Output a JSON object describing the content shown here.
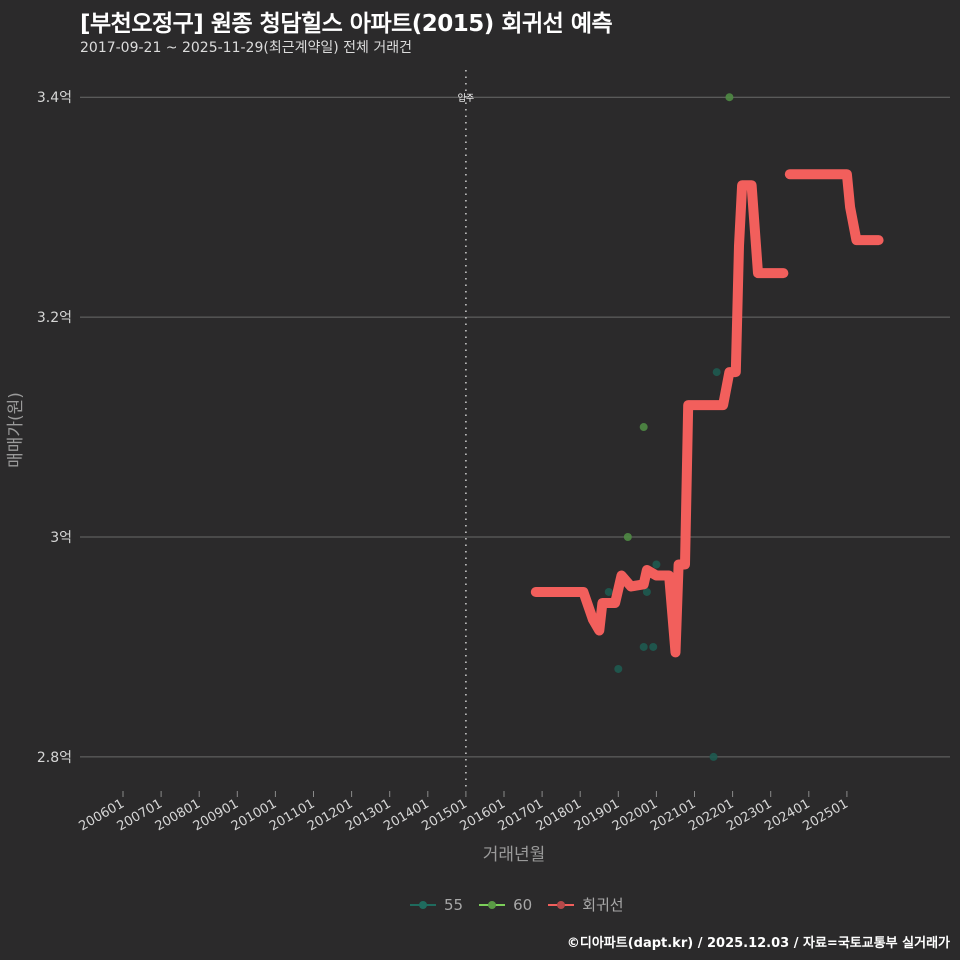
{
  "header": {
    "title": "[부천오정구] 원종 청담힐스 아파트(2015) 회귀선 예측",
    "subtitle": "2017-09-21 ~ 2025-11-29(최근계약일) 전체 거래건"
  },
  "legend": {
    "items": [
      {
        "label": "55",
        "color": "#1f6b5e"
      },
      {
        "label": "60",
        "color": "#7ccf5a"
      },
      {
        "label": "회귀선",
        "color": "#f25f5c"
      }
    ]
  },
  "caption": "©디아파트(dapt.kr) / 2025.12.03 / 자료=국토교통부 실거래가",
  "annotation": {
    "label": "입주",
    "x": "201501"
  },
  "chart_data": {
    "type": "line",
    "title": "[부천오정구] 원종 청담힐스 아파트(2015) 회귀선 예측",
    "subtitle": "2017-09-21 ~ 2025-11-29(최근계약일) 전체 거래건",
    "xlabel": "거래년월",
    "ylabel": "매매가(원)",
    "x_ticks": [
      "200601",
      "200701",
      "200801",
      "200901",
      "201001",
      "201101",
      "201201",
      "201301",
      "201401",
      "201501",
      "201601",
      "201701",
      "201801",
      "201901",
      "202001",
      "202101",
      "202201",
      "202301",
      "202401",
      "202501"
    ],
    "y_ticks": [
      "2.8억",
      "3억",
      "3.2억",
      "3.4억"
    ],
    "y_tick_values": [
      2.8,
      3.0,
      3.2,
      3.4
    ],
    "ylim": [
      2.77,
      3.43
    ],
    "grid": "horizontal",
    "legend_position": "bottom",
    "vline": {
      "x": "201501",
      "label": "입주",
      "style": "dotted"
    },
    "series": [
      {
        "name": "55",
        "type": "scatter",
        "color": "#1f6b5e",
        "points": [
          {
            "x": "2018-10",
            "y": 2.95
          },
          {
            "x": "2019-01",
            "y": 2.88
          },
          {
            "x": "2019-09",
            "y": 2.9
          },
          {
            "x": "2019-10",
            "y": 2.95
          },
          {
            "x": "2019-12",
            "y": 2.9
          },
          {
            "x": "2020-01",
            "y": 2.975
          },
          {
            "x": "2021-07",
            "y": 2.8
          },
          {
            "x": "2021-08",
            "y": 3.15
          }
        ]
      },
      {
        "name": "60",
        "type": "scatter",
        "color": "#7ccf5a",
        "points": [
          {
            "x": "2019-04",
            "y": 3.0
          },
          {
            "x": "2019-09",
            "y": 3.1
          },
          {
            "x": "2021-12",
            "y": 3.4
          }
        ]
      },
      {
        "name": "회귀선",
        "type": "line",
        "color": "#f25f5c",
        "points": [
          {
            "x": "2016-11",
            "y": 2.95
          },
          {
            "x": "2018-02",
            "y": 2.95
          },
          {
            "x": "2018-05",
            "y": 2.925
          },
          {
            "x": "2018-07",
            "y": 2.915
          },
          {
            "x": "2018-08",
            "y": 2.94
          },
          {
            "x": "2018-12",
            "y": 2.94
          },
          {
            "x": "2019-02",
            "y": 2.965
          },
          {
            "x": "2019-05",
            "y": 2.955
          },
          {
            "x": "2019-09",
            "y": 2.957
          },
          {
            "x": "2019-10",
            "y": 2.97
          },
          {
            "x": "2020-01",
            "y": 2.965
          },
          {
            "x": "2020-05",
            "y": 2.965
          },
          {
            "x": "2020-07",
            "y": 2.895
          },
          {
            "x": "2020-08",
            "y": 2.975
          },
          {
            "x": "2020-10",
            "y": 2.975
          },
          {
            "x": "2020-11",
            "y": 3.12
          },
          {
            "x": "2021-10",
            "y": 3.12
          },
          {
            "x": "2021-12",
            "y": 3.15
          },
          {
            "x": "2022-02",
            "y": 3.15
          },
          {
            "x": "2022-03",
            "y": 3.265
          },
          {
            "x": "2022-04",
            "y": 3.32
          },
          {
            "x": "2022-07",
            "y": 3.32
          },
          {
            "x": "2022-09",
            "y": 3.24
          },
          {
            "x": "2023-05",
            "y": 3.24
          },
          {
            "x": "2023-06",
            "y": null
          },
          {
            "x": "2023-07",
            "y": 3.33
          },
          {
            "x": "2025-01",
            "y": 3.33
          },
          {
            "x": "2025-02",
            "y": 3.3
          },
          {
            "x": "2025-04",
            "y": 3.27
          },
          {
            "x": "2025-11",
            "y": 3.27
          }
        ]
      }
    ]
  }
}
